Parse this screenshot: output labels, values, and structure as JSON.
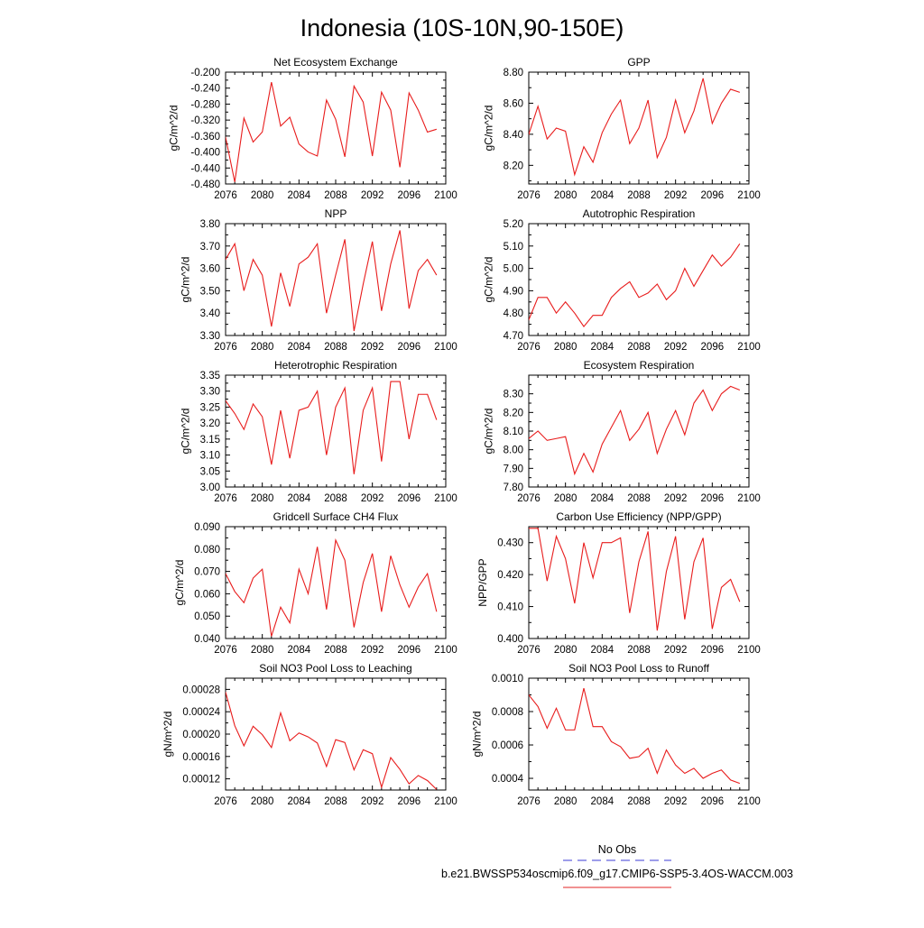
{
  "title": "Indonesia (10S-10N,90-150E)",
  "legend": {
    "entries": [
      {
        "label": "No Obs",
        "color": "#3b3bd6",
        "style": "dashed"
      },
      {
        "label": "b.e21.BWSSP534oscmip6.f09_g17.CMIP6-SSP5-3.4OS-WACCM.003",
        "color": "#e32626",
        "style": "solid"
      }
    ]
  },
  "line_color": "#e81c1c",
  "chart_data": [
    {
      "type": "line",
      "title": "Net Ecosystem Exchange",
      "ylabel": "gC/m^2/d",
      "xlabel": "",
      "xlim": [
        2076,
        2100
      ],
      "ylim": [
        -0.48,
        -0.2
      ],
      "xticks": [
        "2076",
        "2080",
        "2084",
        "2088",
        "2092",
        "2096",
        "2100"
      ],
      "yticks": [
        "-0.480",
        "-0.440",
        "-0.400",
        "-0.360",
        "-0.320",
        "-0.280",
        "-0.240",
        "-0.200"
      ],
      "x": [
        2075,
        2076,
        2077,
        2078,
        2079,
        2080,
        2081,
        2082,
        2083,
        2084,
        2085,
        2086,
        2087,
        2088,
        2089,
        2090,
        2091,
        2092,
        2093,
        2094,
        2095,
        2096,
        2097,
        2098,
        2099
      ],
      "values": [
        -0.335,
        -0.363,
        -0.475,
        -0.315,
        -0.375,
        -0.35,
        -0.225,
        -0.335,
        -0.313,
        -0.38,
        -0.4,
        -0.41,
        -0.27,
        -0.318,
        -0.412,
        -0.235,
        -0.275,
        -0.41,
        -0.25,
        -0.295,
        -0.438,
        -0.252,
        -0.295,
        -0.35,
        -0.343
      ]
    },
    {
      "type": "line",
      "title": "GPP",
      "ylabel": "gC/m^2/d",
      "xlabel": "",
      "xlim": [
        2076,
        2100
      ],
      "ylim": [
        8.08,
        8.8
      ],
      "xticks": [
        "2076",
        "2080",
        "2084",
        "2088",
        "2092",
        "2096",
        "2100"
      ],
      "yticks": [
        "8.20",
        "8.40",
        "8.60",
        "8.80"
      ],
      "x": [
        2075,
        2076,
        2077,
        2078,
        2079,
        2080,
        2081,
        2082,
        2083,
        2084,
        2085,
        2086,
        2087,
        2088,
        2089,
        2090,
        2091,
        2092,
        2093,
        2094,
        2095,
        2096,
        2097,
        2098,
        2099
      ],
      "values": [
        8.46,
        8.4,
        8.58,
        8.37,
        8.44,
        8.42,
        8.14,
        8.32,
        8.22,
        8.41,
        8.53,
        8.62,
        8.34,
        8.44,
        8.62,
        8.25,
        8.38,
        8.62,
        8.41,
        8.55,
        8.76,
        8.47,
        8.6,
        8.69,
        8.67
      ]
    },
    {
      "type": "line",
      "title": "NPP",
      "ylabel": "gC/m^2/d",
      "xlabel": "",
      "xlim": [
        2076,
        2100
      ],
      "ylim": [
        3.3,
        3.8
      ],
      "xticks": [
        "2076",
        "2080",
        "2084",
        "2088",
        "2092",
        "2096",
        "2100"
      ],
      "yticks": [
        "3.30",
        "3.40",
        "3.50",
        "3.60",
        "3.70",
        "3.80"
      ],
      "x": [
        2075,
        2076,
        2077,
        2078,
        2079,
        2080,
        2081,
        2082,
        2083,
        2084,
        2085,
        2086,
        2087,
        2088,
        2089,
        2090,
        2091,
        2092,
        2093,
        2094,
        2095,
        2096,
        2097,
        2098,
        2099
      ],
      "values": [
        3.66,
        3.64,
        3.71,
        3.5,
        3.64,
        3.57,
        3.34,
        3.58,
        3.43,
        3.62,
        3.65,
        3.71,
        3.4,
        3.57,
        3.73,
        3.32,
        3.53,
        3.72,
        3.41,
        3.62,
        3.77,
        3.42,
        3.59,
        3.64,
        3.57
      ]
    },
    {
      "type": "line",
      "title": "Autotrophic Respiration",
      "ylabel": "gC/m^2/d",
      "xlabel": "",
      "xlim": [
        2076,
        2100
      ],
      "ylim": [
        4.7,
        5.2
      ],
      "xticks": [
        "2076",
        "2080",
        "2084",
        "2088",
        "2092",
        "2096",
        "2100"
      ],
      "yticks": [
        "4.70",
        "4.80",
        "4.90",
        "5.00",
        "5.10",
        "5.20"
      ],
      "x": [
        2075,
        2076,
        2077,
        2078,
        2079,
        2080,
        2081,
        2082,
        2083,
        2084,
        2085,
        2086,
        2087,
        2088,
        2089,
        2090,
        2091,
        2092,
        2093,
        2094,
        2095,
        2096,
        2097,
        2098,
        2099
      ],
      "values": [
        4.77,
        4.77,
        4.87,
        4.87,
        4.8,
        4.85,
        4.8,
        4.74,
        4.79,
        4.79,
        4.87,
        4.91,
        4.94,
        4.87,
        4.89,
        4.93,
        4.86,
        4.9,
        5.0,
        4.92,
        4.99,
        5.06,
        5.01,
        5.05,
        5.11
      ]
    },
    {
      "type": "line",
      "title": "Heterotrophic Respiration",
      "ylabel": "gC/m^2/d",
      "xlabel": "",
      "xlim": [
        2076,
        2100
      ],
      "ylim": [
        3.0,
        3.35
      ],
      "xticks": [
        "2076",
        "2080",
        "2084",
        "2088",
        "2092",
        "2096",
        "2100"
      ],
      "yticks": [
        "3.00",
        "3.05",
        "3.10",
        "3.15",
        "3.20",
        "3.25",
        "3.30",
        "3.35"
      ],
      "x": [
        2075,
        2076,
        2077,
        2078,
        2079,
        2080,
        2081,
        2082,
        2083,
        2084,
        2085,
        2086,
        2087,
        2088,
        2089,
        2090,
        2091,
        2092,
        2093,
        2094,
        2095,
        2096,
        2097,
        2098,
        2099
      ],
      "values": [
        3.28,
        3.27,
        3.23,
        3.18,
        3.26,
        3.22,
        3.07,
        3.24,
        3.09,
        3.24,
        3.25,
        3.3,
        3.1,
        3.25,
        3.31,
        3.04,
        3.24,
        3.31,
        3.08,
        3.33,
        3.33,
        3.15,
        3.29,
        3.29,
        3.21
      ]
    },
    {
      "type": "line",
      "title": "Ecosystem Respiration",
      "ylabel": "gC/m^2/d",
      "xlabel": "",
      "xlim": [
        2076,
        2100
      ],
      "ylim": [
        7.8,
        8.4
      ],
      "xticks": [
        "2076",
        "2080",
        "2084",
        "2088",
        "2092",
        "2096",
        "2100"
      ],
      "yticks": [
        "7.80",
        "7.90",
        "8.00",
        "8.10",
        "8.20",
        "8.30"
      ],
      "x": [
        2075,
        2076,
        2077,
        2078,
        2079,
        2080,
        2081,
        2082,
        2083,
        2084,
        2085,
        2086,
        2087,
        2088,
        2089,
        2090,
        2091,
        2092,
        2093,
        2094,
        2095,
        2096,
        2097,
        2098,
        2099
      ],
      "values": [
        8.05,
        8.06,
        8.1,
        8.05,
        8.06,
        8.07,
        7.87,
        7.98,
        7.88,
        8.03,
        8.12,
        8.21,
        8.05,
        8.11,
        8.2,
        7.98,
        8.11,
        8.21,
        8.08,
        8.25,
        8.32,
        8.21,
        8.3,
        8.34,
        8.32
      ]
    },
    {
      "type": "line",
      "title": "Gridcell Surface CH4 Flux",
      "ylabel": "gC/m^2/d",
      "xlabel": "",
      "xlim": [
        2076,
        2100
      ],
      "ylim": [
        0.04,
        0.09
      ],
      "xticks": [
        "2076",
        "2080",
        "2084",
        "2088",
        "2092",
        "2096",
        "2100"
      ],
      "yticks": [
        "0.040",
        "0.050",
        "0.060",
        "0.070",
        "0.080",
        "0.090"
      ],
      "x": [
        2075,
        2076,
        2077,
        2078,
        2079,
        2080,
        2081,
        2082,
        2083,
        2084,
        2085,
        2086,
        2087,
        2088,
        2089,
        2090,
        2091,
        2092,
        2093,
        2094,
        2095,
        2096,
        2097,
        2098,
        2099
      ],
      "values": [
        0.072,
        0.069,
        0.061,
        0.056,
        0.067,
        0.071,
        0.041,
        0.054,
        0.047,
        0.071,
        0.06,
        0.081,
        0.053,
        0.084,
        0.075,
        0.045,
        0.065,
        0.078,
        0.052,
        0.077,
        0.064,
        0.054,
        0.063,
        0.069,
        0.052
      ]
    },
    {
      "type": "line",
      "title": "Carbon Use Efficiency (NPP/GPP)",
      "ylabel": "NPP/GPP",
      "xlabel": "",
      "xlim": [
        2076,
        2100
      ],
      "ylim": [
        0.4,
        0.435
      ],
      "xticks": [
        "2076",
        "2080",
        "2084",
        "2088",
        "2092",
        "2096",
        "2100"
      ],
      "yticks": [
        "0.400",
        "0.410",
        "0.420",
        "0.430"
      ],
      "x": [
        2075,
        2076,
        2077,
        2078,
        2079,
        2080,
        2081,
        2082,
        2083,
        2084,
        2085,
        2086,
        2087,
        2088,
        2089,
        2090,
        2091,
        2092,
        2093,
        2094,
        2095,
        2096,
        2097,
        2098,
        2099
      ],
      "values": [
        0.432,
        0.4345,
        0.4345,
        0.418,
        0.432,
        0.425,
        0.411,
        0.43,
        0.419,
        0.43,
        0.43,
        0.4315,
        0.408,
        0.424,
        0.4335,
        0.4025,
        0.421,
        0.432,
        0.406,
        0.424,
        0.4315,
        0.403,
        0.416,
        0.4185,
        0.4115
      ]
    },
    {
      "type": "line",
      "title": "Soil NO3 Pool Loss to Leaching",
      "ylabel": "gN/m^2/d",
      "xlabel": "",
      "xlim": [
        2076,
        2100
      ],
      "ylim": [
        0.0001,
        0.0003
      ],
      "xticks": [
        "2076",
        "2080",
        "2084",
        "2088",
        "2092",
        "2096",
        "2100"
      ],
      "yticks": [
        "0.00012",
        "0.00016",
        "0.00020",
        "0.00024",
        "0.00028"
      ],
      "x": [
        2075,
        2076,
        2077,
        2078,
        2079,
        2080,
        2081,
        2082,
        2083,
        2084,
        2085,
        2086,
        2087,
        2088,
        2089,
        2090,
        2091,
        2092,
        2093,
        2094,
        2095,
        2096,
        2097,
        2098,
        2099
      ],
      "values": [
        0.000295,
        0.000275,
        0.000215,
        0.000179,
        0.000214,
        0.000199,
        0.000176,
        0.000238,
        0.000188,
        0.000202,
        0.000195,
        0.000184,
        0.000142,
        0.00019,
        0.000185,
        0.000136,
        0.000172,
        0.000165,
        0.000105,
        0.000158,
        0.000137,
        0.000111,
        0.000126,
        0.000117,
        0.000101
      ]
    },
    {
      "type": "line",
      "title": "Soil NO3 Pool Loss to Runoff",
      "ylabel": "gN/m^2/d",
      "xlabel": "",
      "xlim": [
        2076,
        2100
      ],
      "ylim": [
        0.00033,
        0.001
      ],
      "xticks": [
        "2076",
        "2080",
        "2084",
        "2088",
        "2092",
        "2096",
        "2100"
      ],
      "yticks": [
        "0.0004",
        "0.0006",
        "0.0008",
        "0.0010"
      ],
      "x": [
        2075,
        2076,
        2077,
        2078,
        2079,
        2080,
        2081,
        2082,
        2083,
        2084,
        2085,
        2086,
        2087,
        2088,
        2089,
        2090,
        2091,
        2092,
        2093,
        2094,
        2095,
        2096,
        2097,
        2098,
        2099
      ],
      "values": [
        0.00093,
        0.0009,
        0.00083,
        0.0007,
        0.00082,
        0.00069,
        0.00069,
        0.00094,
        0.00071,
        0.00071,
        0.00062,
        0.00059,
        0.00052,
        0.00053,
        0.00058,
        0.00043,
        0.00057,
        0.00048,
        0.00043,
        0.00046,
        0.0004,
        0.00043,
        0.00045,
        0.00039,
        0.00037
      ]
    }
  ]
}
